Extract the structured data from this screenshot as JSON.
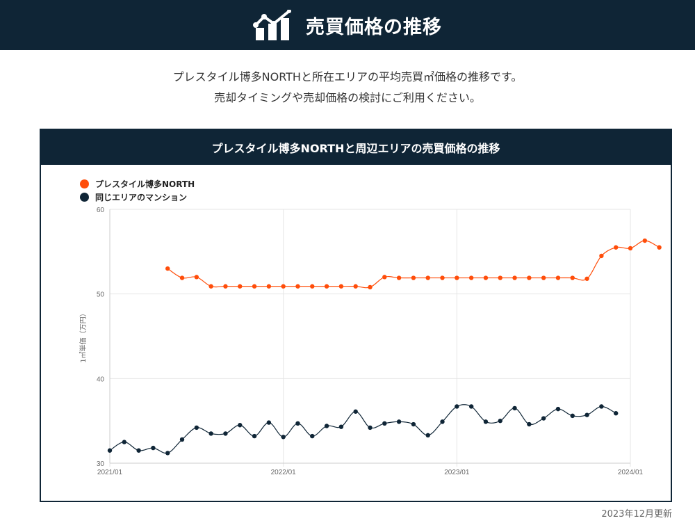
{
  "header": {
    "title": "売買価格の推移",
    "icon": "rising-chart-icon"
  },
  "description": {
    "line1": "プレスタイル博多NORTHと所在エリアの平均売買㎡価格の推移です。",
    "line2": "売却タイミングや売却価格の検討にご利用ください。"
  },
  "colors": {
    "navy": "#0f2536",
    "orange": "#ff4d0a",
    "grid": "#e6e6e6"
  },
  "footer": {
    "updated": "2023年12月更新"
  },
  "chart_data": {
    "type": "line",
    "title": "プレスタイル博多NORTHと周辺エリアの売買価格の推移",
    "ylabel": "1㎡単価（万円）",
    "xlabel": "",
    "ylim": [
      30,
      60
    ],
    "yticks": [
      30,
      40,
      50,
      60
    ],
    "xticks": [
      {
        "label": "2021/01",
        "index": 0
      },
      {
        "label": "2022/01",
        "index": 12
      },
      {
        "label": "2023/01",
        "index": 24
      },
      {
        "label": "2024/01",
        "index": 36
      }
    ],
    "x_start": "2021/01",
    "x_step": "1 month",
    "grid": true,
    "legend_position": "top-left",
    "series": [
      {
        "name": "プレスタイル博多NORTH",
        "color": "#ff4d0a",
        "start_index": 4,
        "values": [
          53.0,
          51.9,
          52.0,
          50.9,
          50.9,
          50.9,
          50.9,
          50.9,
          50.9,
          50.9,
          50.9,
          50.9,
          50.9,
          50.9,
          50.8,
          52.0,
          51.9,
          51.9,
          51.9,
          51.9,
          51.9,
          51.9,
          51.9,
          51.9,
          51.9,
          51.9,
          51.9,
          51.9,
          51.9,
          51.8,
          54.5,
          55.5,
          55.4,
          56.3,
          55.5
        ]
      },
      {
        "name": "同じエリアのマンション",
        "color": "#0f2536",
        "start_index": 0,
        "values": [
          31.5,
          32.5,
          31.5,
          31.8,
          31.2,
          32.8,
          34.2,
          33.5,
          33.5,
          34.5,
          33.2,
          34.8,
          33.1,
          34.7,
          33.2,
          34.4,
          34.3,
          36.1,
          34.2,
          34.7,
          34.9,
          34.6,
          33.3,
          34.9,
          36.7,
          36.7,
          34.9,
          35.0,
          36.5,
          34.6,
          35.3,
          36.4,
          35.6,
          35.7,
          36.7,
          35.9
        ]
      }
    ]
  }
}
